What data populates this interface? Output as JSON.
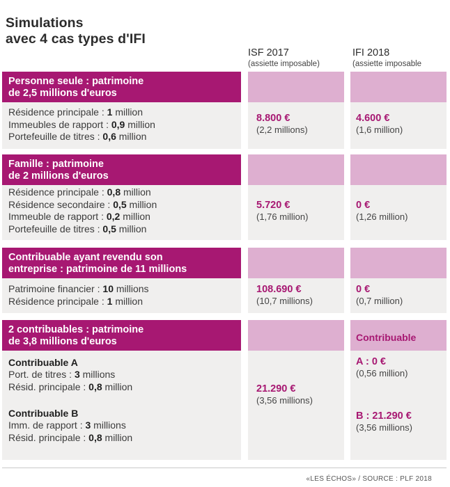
{
  "title": {
    "line1": "Simulations",
    "line2": "avec 4 cas types d'IFI"
  },
  "columns": {
    "isf": {
      "label": "ISF 2017",
      "sub": "(assiette imposable)"
    },
    "ifi": {
      "label": "IFI 2018",
      "sub": "(assiette imposable"
    }
  },
  "cases": [
    {
      "title1": "Personne seule : patrimoine",
      "title2": "de 2,5 millions d'euros",
      "lines": [
        {
          "label": "Résidence principale : ",
          "value": "1",
          "unit": " million"
        },
        {
          "label": "Immeubles de rapport : ",
          "value": "0,9",
          "unit": " million"
        },
        {
          "label": "Portefeuille de titres : ",
          "value": "0,6",
          "unit": " million"
        }
      ],
      "isf_value": "8.800 €",
      "isf_sub": "(2,2 millions)",
      "ifi_value": "4.600 €",
      "ifi_sub": "(1,6 million)"
    },
    {
      "title1": "Famille : patrimoine",
      "title2": "de 2 millions d'euros",
      "lines": [
        {
          "label": "Résidence principale : ",
          "value": "0,8",
          "unit": " million"
        },
        {
          "label": "Résidence secondaire : ",
          "value": "0,5",
          "unit": " million"
        },
        {
          "label": "Immeuble de rapport : ",
          "value": "0,2",
          "unit": " million"
        },
        {
          "label": "Portefeuille de titres : ",
          "value": "0,5",
          "unit": " million"
        }
      ],
      "isf_value": "5.720 €",
      "isf_sub": "(1,76 million)",
      "ifi_value": "0 €",
      "ifi_sub": "(1,26 million)"
    },
    {
      "title1": "Contribuable ayant revendu son",
      "title2": "entreprise : patrimoine de 11 millions",
      "lines": [
        {
          "label": "Patrimoine financier : ",
          "value": "10",
          "unit": " millions"
        },
        {
          "label": "Résidence principale : ",
          "value": "1",
          "unit": " million"
        }
      ],
      "isf_value": "108.690 €",
      "isf_sub": "(10,7 millions)",
      "ifi_value": "0 €",
      "ifi_sub": "(0,7 million)"
    },
    {
      "title1": "2 contribuables : patrimoine",
      "title2": "de 3,8 millions d'euros",
      "ifi_header": "Contribuable",
      "a_title": "Contribuable A",
      "a_lines": [
        {
          "label": "Port. de titres : ",
          "value": "3",
          "unit": " millions"
        },
        {
          "label": "Résid. principale : ",
          "value": "0,8",
          "unit": " million"
        }
      ],
      "b_title": "Contribuable B",
      "b_lines": [
        {
          "label": "Imm. de rapport : ",
          "value": "3",
          "unit": " millions"
        },
        {
          "label": "Résid. principale : ",
          "value": "0,8",
          "unit": " million"
        }
      ],
      "isf_value": "21.290 €",
      "isf_sub": "(3,56 millions)",
      "ifi_a_value": "A : 0 €",
      "ifi_a_sub": "(0,56 million)",
      "ifi_b_value": "B : 21.290 €",
      "ifi_b_sub": "(3,56 millions)"
    }
  ],
  "source": "«LES ÉCHOS» / SOURCE : PLF 2018",
  "colors": {
    "accent": "#a71872",
    "accent_light": "#deafd0",
    "panel": "#f0efee"
  }
}
